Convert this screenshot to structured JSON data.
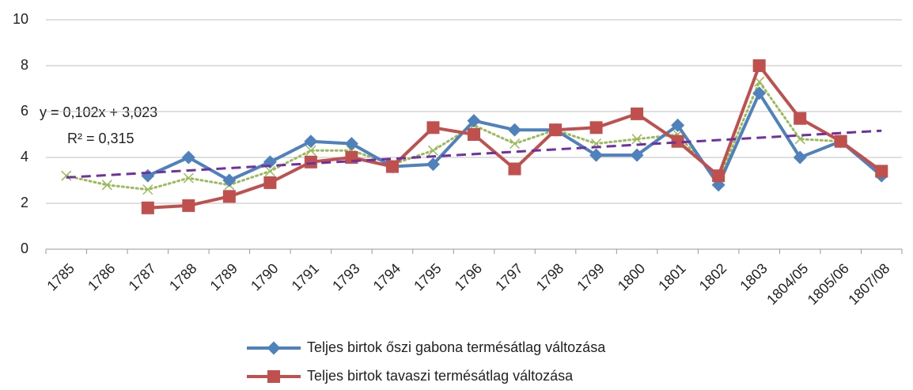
{
  "chart_data": {
    "type": "line",
    "categories": [
      "1785",
      "1786",
      "1787",
      "1788",
      "1789",
      "1790",
      "1791",
      "1793",
      "1794",
      "1795",
      "1796",
      "1797",
      "1798",
      "1799",
      "1800",
      "1801",
      "1802",
      "1803",
      "1804/05",
      "1805/06",
      "1807/08"
    ],
    "series": [
      {
        "name": "Teljes birtok őszi gabona termésátlag változása",
        "color": "#4f81bd",
        "marker": "diamond",
        "values": [
          null,
          null,
          3.2,
          4.0,
          3.0,
          3.8,
          4.7,
          4.6,
          3.6,
          3.7,
          5.6,
          5.2,
          5.2,
          4.1,
          4.1,
          5.4,
          2.8,
          6.8,
          4.0,
          4.7,
          3.2
        ]
      },
      {
        "name": "Teljes birtok tavaszi termésátlag változása",
        "color": "#c0504d",
        "marker": "square",
        "values": [
          null,
          null,
          1.8,
          1.9,
          2.3,
          2.9,
          3.8,
          4.0,
          3.6,
          5.3,
          5.0,
          3.5,
          5.2,
          5.3,
          5.9,
          4.7,
          3.2,
          8.0,
          5.7,
          4.7,
          3.4
        ]
      },
      {
        "color": "#9bbb59",
        "marker": "x",
        "dotted": true,
        "values": [
          3.2,
          2.8,
          2.6,
          3.1,
          2.8,
          3.4,
          4.3,
          4.3,
          3.7,
          4.3,
          5.4,
          4.6,
          5.2,
          4.6,
          4.8,
          5.0,
          3.0,
          7.3,
          4.8,
          4.7,
          3.3
        ]
      }
    ],
    "trendline": {
      "equation": "y = 0,102x + 3,023",
      "r_squared": "R² = 0,315",
      "slope": 0.102,
      "intercept": 3.023,
      "color": "#7030a0"
    },
    "ylim": [
      0,
      10
    ],
    "yticks": [
      0,
      2,
      4,
      6,
      8,
      10
    ],
    "grid": true
  }
}
